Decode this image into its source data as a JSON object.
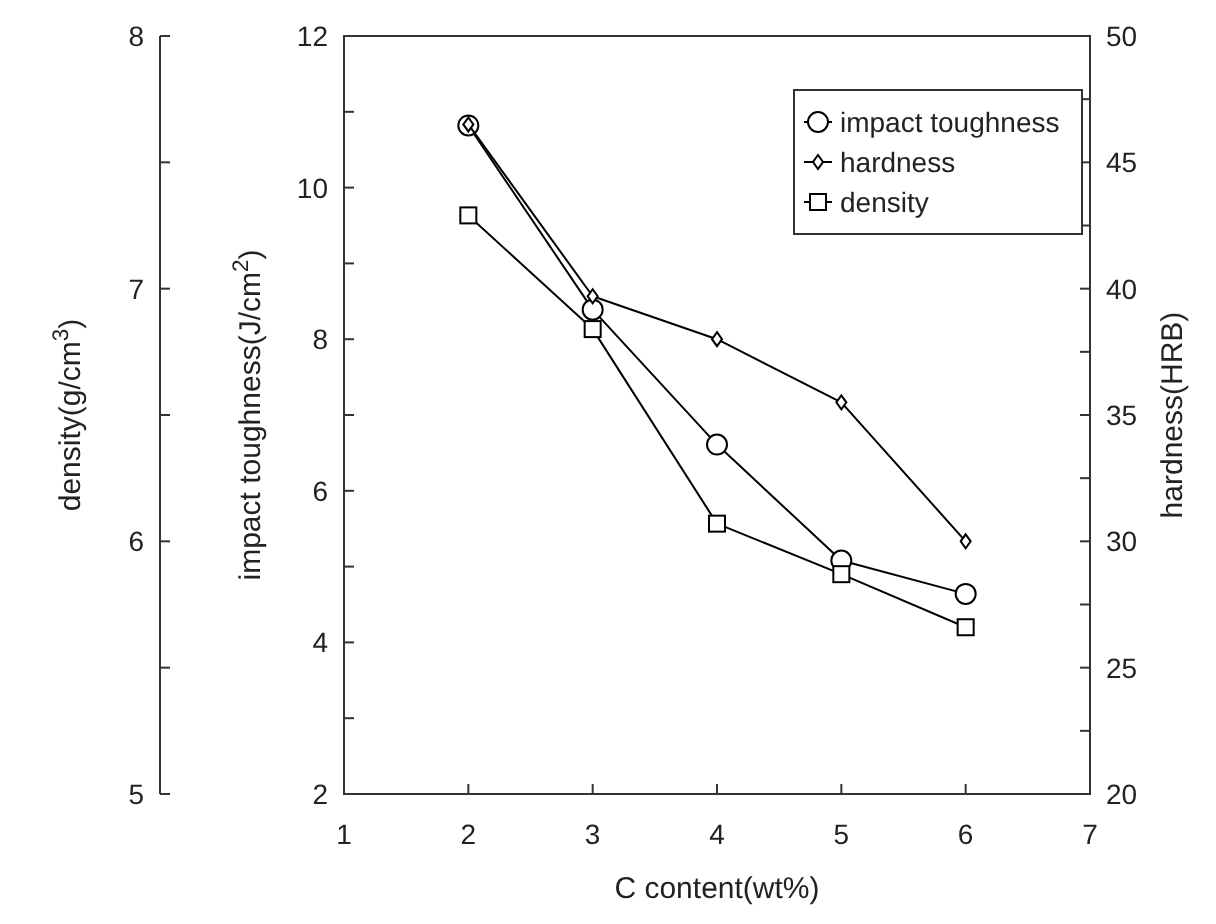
{
  "chart_data": {
    "type": "line",
    "xlabel": "C content(wt%)",
    "ylabel": "impact toughness(J/cm$^{2}$)",
    "y2label": "hardness(HRB)",
    "y3label": "density(g/cm$^{3}$)",
    "x": [
      2,
      3,
      4,
      5,
      6
    ],
    "xlim": [
      1,
      7
    ],
    "xticks": [
      1,
      2,
      3,
      4,
      5,
      6,
      7
    ],
    "ylim": [
      2,
      12
    ],
    "yticks": [
      2,
      {
        "value": 3,
        "label": null
      },
      4,
      {
        "value": 5,
        "label": null
      },
      6,
      {
        "value": 7,
        "label": null
      },
      8,
      {
        "value": 9,
        "label": null
      },
      10,
      {
        "value": 11,
        "label": null
      },
      12
    ],
    "y2lim": [
      20,
      50
    ],
    "y2ticks": [
      20,
      {
        "value": 22.5,
        "label": null
      },
      25,
      {
        "value": 27.5,
        "label": null
      },
      30,
      {
        "value": 32.5,
        "label": null
      },
      35,
      {
        "value": 37.5,
        "label": null
      },
      40,
      {
        "value": 42.5,
        "label": null
      },
      45,
      {
        "value": 47.5,
        "label": null
      },
      50
    ],
    "y3lim": [
      5,
      8
    ],
    "y3ticks": [
      5,
      {
        "value": 5.5,
        "label": null
      },
      6,
      {
        "value": 6.5,
        "label": null
      },
      7,
      {
        "value": 7.5,
        "label": null
      },
      8
    ],
    "series": [
      {
        "name": "impact toughness",
        "color": "#000000",
        "marker": "circle",
        "values": [
          10.82,
          8.39,
          6.61,
          5.08,
          4.64
        ]
      },
      {
        "name": "hardness",
        "color": "#000000",
        "marker": "diamond",
        "axis": "y2",
        "values": [
          46.5,
          39.7,
          38.0,
          35.5,
          30.0
        ]
      },
      {
        "name": "density",
        "color": "#000000",
        "marker": "square",
        "axis": "y3",
        "values": [
          7.29,
          6.84,
          6.07,
          5.87,
          5.66
        ]
      }
    ],
    "legend": "top right",
    "grid": false,
    "line_style": "solid"
  }
}
